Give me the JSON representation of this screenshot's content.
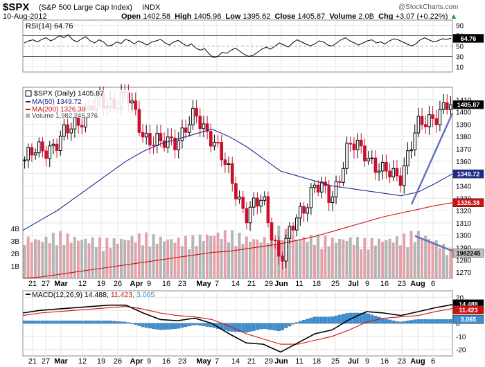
{
  "header": {
    "symbol": "$SPX",
    "name": "(S&P 500 Large Cap Index)",
    "exchange": "INDX",
    "date": "10-Aug-2012",
    "open_label": "Open",
    "open": "1402.58",
    "high_label": "High",
    "high": "1405.98",
    "low_label": "Low",
    "low": "1395.62",
    "close_label": "Close",
    "close": "1405.87",
    "volume_label": "Volume",
    "volume": "2.0B",
    "chg_label": "Chg",
    "chg": "+3.07 (+0.22%)",
    "chg_arrow": "▲",
    "watermark": "@StockCharts.com"
  },
  "rsi": {
    "legend": "RSI(14) 64.76",
    "value_box": "64.76",
    "ticks": [
      "90",
      "70",
      "50",
      "30",
      "10"
    ]
  },
  "price": {
    "legend_main": "$SPX (Daily) 1405.87",
    "legend_ma50": "MA(50) 1349.72",
    "legend_ma200": "MA(200) 1326.38",
    "legend_volume": "Volume 1,982,245,376",
    "ticks": [
      "1410",
      "1400",
      "1390",
      "1380",
      "1370",
      "1360",
      "1350",
      "1340",
      "1330",
      "1320",
      "1310",
      "1300",
      "1290",
      "1280",
      "1270"
    ],
    "box_close": "1405.87",
    "box_ma50": "1349.72",
    "box_ma200": "1326.38",
    "box_volume": "1982245",
    "volume_ticks": [
      "4B",
      "3B",
      "2B",
      "1B"
    ]
  },
  "macd": {
    "legend_prefix": "MACD(12,26,9)",
    "legend_macd": "14.488,",
    "legend_signal": "11.423,",
    "legend_hist": "3.065",
    "box_macd": "14.488",
    "box_signal": "11.423",
    "box_hist": "3.065",
    "ticks": [
      "20",
      "10",
      "0",
      "-10",
      "-20"
    ]
  },
  "xaxis": [
    "21",
    "27",
    "Mar",
    "12",
    "19",
    "26",
    "Apr",
    "9",
    "16",
    "23",
    "May",
    "7",
    "14",
    "21",
    "29",
    "Jun",
    "11",
    "18",
    "25",
    "Jul",
    "9",
    "16",
    "23",
    "Aug",
    "6"
  ],
  "colors": {
    "up": "#000000",
    "down": "#c8102e",
    "ma50": "#1f2b8c",
    "ma200": "#d01010",
    "vol_up": "#b4b4b4",
    "vol_down": "#e8a0a8",
    "macd_hist": "#3d8fd1",
    "trendline": "#6670c0"
  },
  "chart_data": [
    {
      "type": "line",
      "title": "RSI(14) 64.76",
      "ylim": [
        0,
        100
      ],
      "reference_lines": [
        70,
        50,
        30
      ],
      "series": [
        {
          "name": "RSI(14)",
          "last": 64.76
        }
      ]
    },
    {
      "type": "candlestick",
      "title": "$SPX (Daily) 1405.87",
      "ylim": [
        1265,
        1420
      ],
      "last_close": 1405.87,
      "x": [
        "Feb 21",
        "Feb 27",
        "Mar 5",
        "Mar 12",
        "Mar 19",
        "Mar 26",
        "Apr 2",
        "Apr 9",
        "Apr 16",
        "Apr 23",
        "Apr 30",
        "May 7",
        "May 14",
        "May 21",
        "May 29",
        "Jun 4",
        "Jun 11",
        "Jun 18",
        "Jun 25",
        "Jul 2",
        "Jul 9",
        "Jul 16",
        "Jul 23",
        "Jul 30",
        "Aug 6",
        "Aug 10"
      ],
      "series": [
        {
          "name": "$SPX (Daily)",
          "values": [
            1361,
            1370,
            1375,
            1392,
            1405,
            1408,
            1412,
            1382,
            1372,
            1380,
            1395,
            1381,
            1348,
            1318,
            1328,
            1280,
            1315,
            1340,
            1330,
            1372,
            1368,
            1350,
            1348,
            1385,
            1398,
            1405.87
          ]
        },
        {
          "name": "MA(50)",
          "values": [
            1304,
            1312,
            1320,
            1330,
            1340,
            1350,
            1360,
            1368,
            1374,
            1378,
            1382,
            1386,
            1380,
            1372,
            1362,
            1352,
            1348,
            1344,
            1340,
            1338,
            1336,
            1334,
            1332,
            1335,
            1342,
            1349.72
          ]
        },
        {
          "name": "MA(200)",
          "values": [
            1265,
            1266,
            1268,
            1270,
            1272,
            1274,
            1276,
            1278,
            1280,
            1282,
            1284,
            1286,
            1287,
            1289,
            1291,
            1293,
            1296,
            1299,
            1303,
            1307,
            1311,
            1315,
            1318,
            1321,
            1324,
            1326.38
          ]
        },
        {
          "name": "Volume",
          "unit": "billions",
          "values": [
            2.9,
            2.8,
            3.2,
            2.9,
            2.8,
            2.7,
            2.9,
            3.1,
            2.9,
            2.8,
            2.9,
            3.2,
            3.3,
            2.9,
            2.8,
            3.6,
            2.9,
            3.0,
            2.8,
            2.9,
            2.7,
            2.8,
            2.9,
            3.3,
            2.8,
            2.0
          ]
        }
      ]
    },
    {
      "type": "line",
      "title": "MACD(12,26,9) 14.488, 11.423, 3.065",
      "ylim": [
        -25,
        25
      ],
      "series": [
        {
          "name": "MACD",
          "values": [
            8,
            10,
            11,
            12,
            13,
            14,
            14,
            8,
            3,
            2,
            4,
            0,
            -8,
            -15,
            -16,
            -22,
            -15,
            -8,
            -5,
            3,
            9,
            8,
            6,
            9,
            12,
            14.488
          ]
        },
        {
          "name": "Signal",
          "values": [
            6,
            8,
            9,
            10,
            11,
            12,
            13,
            11,
            8,
            6,
            5,
            3,
            -2,
            -8,
            -12,
            -16,
            -16,
            -13,
            -10,
            -5,
            1,
            4,
            5,
            6,
            9,
            11.423
          ]
        },
        {
          "name": "Histogram",
          "values": [
            2,
            2,
            2,
            2,
            2,
            2,
            1,
            -3,
            -5,
            -4,
            -1,
            -3,
            -6,
            -7,
            -4,
            -6,
            1,
            5,
            5,
            8,
            8,
            4,
            1,
            3,
            3,
            3.065
          ]
        }
      ]
    }
  ]
}
